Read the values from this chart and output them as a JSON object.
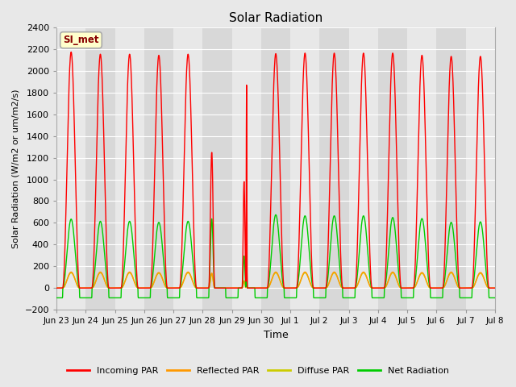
{
  "title": "Solar Radiation",
  "ylabel": "Solar Radiation (W/m2 or um/m2/s)",
  "xlabel": "Time",
  "ylim": [
    -200,
    2400
  ],
  "yticks": [
    -200,
    0,
    200,
    400,
    600,
    800,
    1000,
    1200,
    1400,
    1600,
    1800,
    2000,
    2200,
    2400
  ],
  "fig_bg": "#e8e8e8",
  "plot_bg_light": "#e8e8e8",
  "plot_bg_dark": "#d8d8d8",
  "grid_color": "#ffffff",
  "annotation_text": "SI_met",
  "annotation_bg": "#ffffcc",
  "annotation_border": "#aaaaaa",
  "annotation_text_color": "#880000",
  "line_colors": {
    "incoming": "#ff0000",
    "reflected": "#ff9900",
    "diffuse": "#cccc00",
    "net": "#00cc00"
  },
  "legend_labels": [
    "Incoming PAR",
    "Reflected PAR",
    "Diffuse PAR",
    "Net Radiation"
  ],
  "n_days": 15,
  "pts_per_day": 144,
  "night_net": -90
}
